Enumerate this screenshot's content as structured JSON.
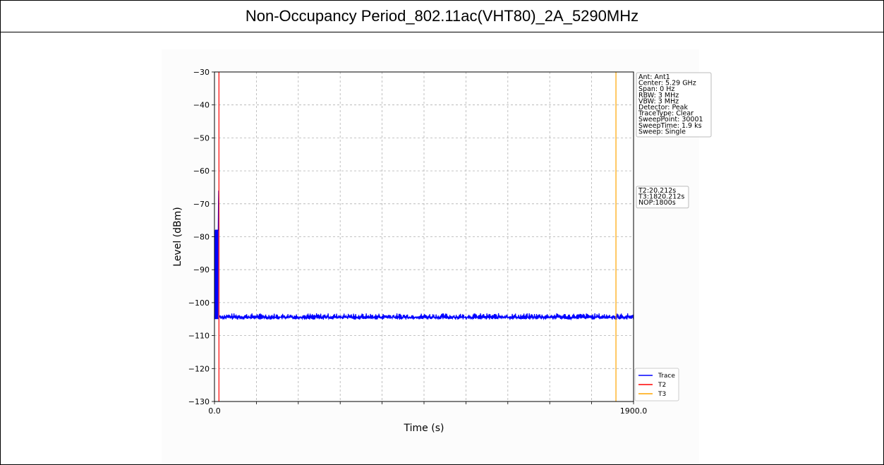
{
  "title": "Non-Occupancy Period_802.11ac(VHT80)_2A_5290MHz",
  "chart_data": {
    "type": "line",
    "xlabel": "Time (s)",
    "ylabel": "Level (dBm)",
    "xlim": [
      0,
      1900
    ],
    "ylim": [
      -130,
      -30
    ],
    "x_tick_labels": [
      "0.0",
      "1900.0"
    ],
    "y_ticks": [
      -30,
      -40,
      -50,
      -60,
      -70,
      -80,
      -90,
      -100,
      -110,
      -120,
      -130
    ],
    "y_tick_labels": [
      "−30",
      "−40",
      "−50",
      "−60",
      "−70",
      "−80",
      "−90",
      "−100",
      "−110",
      "−120",
      "−130"
    ],
    "grid": true,
    "series": [
      {
        "name": "Trace",
        "color": "#0000ff",
        "x": [
          0,
          5,
          10,
          17,
          18,
          19,
          20,
          21,
          22,
          26,
          40,
          100,
          200,
          400,
          600,
          800,
          1000,
          1200,
          1400,
          1600,
          1800,
          1900
        ],
        "y": [
          -105,
          -78,
          -78,
          -78,
          -70,
          -66,
          -105,
          -104.5,
          -104,
          -104.5,
          -104.5,
          -104.5,
          -104.5,
          -104.3,
          -104.5,
          -104.5,
          -104.5,
          -104.5,
          -104.5,
          -104.5,
          -104.5,
          -104.5
        ]
      }
    ],
    "vertical_markers": [
      {
        "name": "T2",
        "x": 20.212,
        "color": "#ff0000"
      },
      {
        "name": "T3",
        "x": 1820.212,
        "color": "#ffa500"
      }
    ],
    "legend": {
      "placement": "lower-right",
      "entries": [
        "Trace",
        "T2",
        "T3"
      ]
    },
    "info_box": [
      "Ant: Ant1",
      "Center: 5.29 GHz",
      "Span: 0 Hz",
      "RBW: 3 MHz",
      "VBW: 3 MHz",
      "Detector: Peak",
      "TraceType: Clear",
      "SweepPoint: 30001",
      "SweepTime: 1.9 ks",
      "Sweep: Single"
    ],
    "marker_box": [
      "T2:20.212s",
      "T3:1820.212s",
      "NOP:1800s"
    ]
  }
}
